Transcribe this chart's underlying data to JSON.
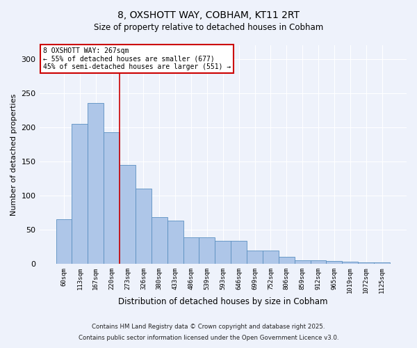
{
  "title": "8, OXSHOTT WAY, COBHAM, KT11 2RT",
  "subtitle": "Size of property relative to detached houses in Cobham",
  "xlabel": "Distribution of detached houses by size in Cobham",
  "ylabel": "Number of detached properties",
  "bar_color": "#aec6e8",
  "bar_edge_color": "#5a8fc0",
  "categories": [
    "60sqm",
    "113sqm",
    "167sqm",
    "220sqm",
    "273sqm",
    "326sqm",
    "380sqm",
    "433sqm",
    "486sqm",
    "539sqm",
    "593sqm",
    "646sqm",
    "699sqm",
    "752sqm",
    "806sqm",
    "859sqm",
    "912sqm",
    "965sqm",
    "1019sqm",
    "1072sqm",
    "1125sqm"
  ],
  "values": [
    65,
    205,
    235,
    193,
    145,
    110,
    68,
    63,
    39,
    39,
    34,
    34,
    19,
    19,
    10,
    5,
    5,
    4,
    3,
    2,
    2
  ],
  "ylim": [
    0,
    320
  ],
  "yticks": [
    0,
    50,
    100,
    150,
    200,
    250,
    300
  ],
  "property_line_bin": 4,
  "annotation_line1": "8 OXSHOTT WAY: 267sqm",
  "annotation_line2": "← 55% of detached houses are smaller (677)",
  "annotation_line3": "45% of semi-detached houses are larger (551) →",
  "annotation_box_color": "#ffffff",
  "annotation_edge_color": "#cc0000",
  "property_line_color": "#cc0000",
  "background_color": "#eef2fb",
  "footer_line1": "Contains HM Land Registry data © Crown copyright and database right 2025.",
  "footer_line2": "Contains public sector information licensed under the Open Government Licence v3.0."
}
